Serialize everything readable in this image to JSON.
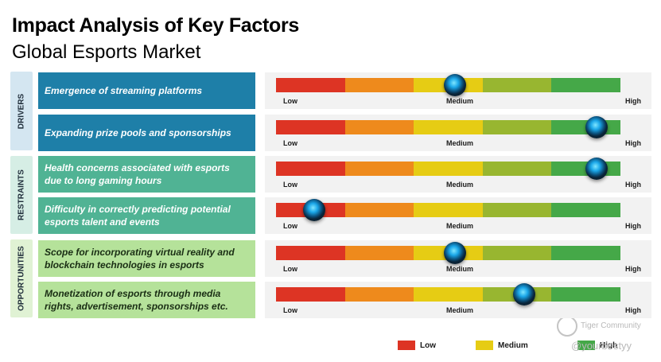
{
  "header": {
    "title": "Impact Analysis of Key Factors",
    "subtitle": "Global Esports Market"
  },
  "chart_data": {
    "type": "table",
    "scale_labels": {
      "low": "Low",
      "medium": "Medium",
      "high": "High"
    },
    "scale_colors": [
      "#dd3424",
      "#ee8a1c",
      "#e6cc14",
      "#98b630",
      "#45a848"
    ],
    "groups": [
      {
        "name": "DRIVERS",
        "color": "#d4e6f1"
      },
      {
        "name": "RESTRAINTS",
        "color": "#d6eee5"
      },
      {
        "name": "OPPORTUNITIES",
        "color": "#e0f2d4"
      }
    ],
    "factor_colors": [
      "#1e7fa8",
      "#50b394",
      "#b5e29a"
    ],
    "factors": [
      {
        "group": "DRIVERS",
        "text": "Emergence of streaming platforms",
        "impact": 0.52
      },
      {
        "group": "DRIVERS",
        "text": "Expanding prize pools and sponsorships",
        "impact": 0.93
      },
      {
        "group": "RESTRAINTS",
        "text": "Health concerns associated with esports due to long gaming hours",
        "impact": 0.93
      },
      {
        "group": "RESTRAINTS",
        "text": "Difficulty in correctly predicting potential esports talent and events",
        "impact": 0.11
      },
      {
        "group": "OPPORTUNITIES",
        "text": "Scope for incorporating virtual reality and blockchain technologies in esports",
        "impact": 0.52
      },
      {
        "group": "OPPORTUNITIES",
        "text": "Monetization of esports through media rights, advertisement, sponsorships etc.",
        "impact": 0.72
      }
    ],
    "legend": [
      {
        "label": "Low",
        "color": "#dd3424"
      },
      {
        "label": "Medium",
        "color": "#e6cc14"
      },
      {
        "label": "High",
        "color": "#45a848"
      }
    ]
  },
  "watermark": {
    "line1": "Tiger Community",
    "line2": "@yourbestyy"
  }
}
